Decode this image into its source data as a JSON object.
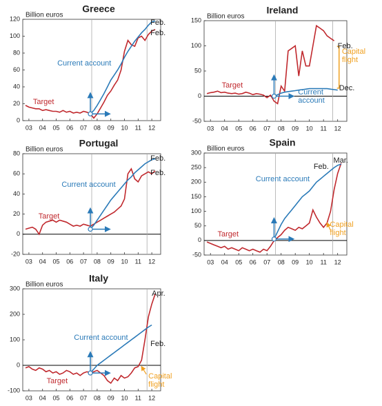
{
  "chart_data": [
    {
      "type": "line",
      "title": "Greece",
      "y_label": "Billion euros",
      "x": [
        2.75,
        3,
        3.25,
        3.5,
        3.75,
        4,
        4.25,
        4.5,
        4.75,
        5,
        5.25,
        5.5,
        5.75,
        6,
        6.25,
        6.5,
        6.75,
        7,
        7.25,
        7.5,
        7.75,
        8,
        8.25,
        8.5,
        8.75,
        9,
        9.25,
        9.5,
        9.75,
        10,
        10.25,
        10.5,
        10.75,
        11,
        11.25,
        11.5,
        11.75,
        12,
        12.25
      ],
      "series": [
        {
          "name": "Target",
          "color": "#c0282d",
          "values": [
            18,
            16,
            15,
            14,
            14,
            12,
            13,
            12,
            11,
            11,
            10,
            12,
            10,
            11,
            9,
            10,
            9,
            11,
            10,
            8,
            3,
            8,
            15,
            22,
            30,
            35,
            42,
            48,
            60,
            82,
            95,
            90,
            88,
            98,
            100,
            95,
            102,
            106,
            108
          ]
        },
        {
          "name": "Current account",
          "color": "#2a7ab8",
          "values": [
            null,
            null,
            null,
            null,
            null,
            null,
            null,
            null,
            null,
            null,
            null,
            null,
            null,
            null,
            null,
            null,
            null,
            null,
            null,
            8,
            12,
            18,
            25,
            32,
            40,
            48,
            54,
            60,
            67,
            75,
            82,
            88,
            94,
            99,
            104,
            108,
            113,
            117,
            118
          ]
        }
      ],
      "xlim": [
        2.55,
        12.65
      ],
      "xticks": [
        {
          "value": 3,
          "label": "03"
        },
        {
          "value": 4,
          "label": "04"
        },
        {
          "value": 5,
          "label": "05"
        },
        {
          "value": 6,
          "label": "06"
        },
        {
          "value": 7,
          "label": "07"
        },
        {
          "value": 8,
          "label": "08"
        },
        {
          "value": 9,
          "label": "09"
        },
        {
          "value": 10,
          "label": "10"
        },
        {
          "value": 11,
          "label": "11"
        },
        {
          "value": 12,
          "label": "12"
        }
      ],
      "ylim": [
        0,
        120
      ],
      "yticks": [
        0,
        20,
        40,
        60,
        80,
        100,
        120
      ],
      "annotations": [
        {
          "text": "Current account",
          "color": "#2a7ab8"
        },
        {
          "text": "Target",
          "color": "#c0282d"
        },
        {
          "text": "Feb.",
          "color": "#222"
        },
        {
          "text": "Feb.",
          "color": "#222"
        }
      ]
    },
    {
      "type": "line",
      "title": "Ireland",
      "y_label": "Billion euros",
      "x": [
        2.75,
        3,
        3.25,
        3.5,
        3.75,
        4,
        4.25,
        4.5,
        4.75,
        5,
        5.25,
        5.5,
        5.75,
        6,
        6.25,
        6.5,
        6.75,
        7,
        7.25,
        7.5,
        7.75,
        8,
        8.25,
        8.5,
        8.75,
        9,
        9.25,
        9.5,
        9.75,
        10,
        10.25,
        10.5,
        10.75,
        11,
        11.25,
        11.5,
        11.75,
        12,
        12.25
      ],
      "series": [
        {
          "name": "Target",
          "color": "#c0282d",
          "values": [
            5,
            7,
            8,
            10,
            7,
            8,
            6,
            5,
            6,
            4,
            5,
            8,
            6,
            3,
            5,
            4,
            2,
            -3,
            2,
            -10,
            -15,
            20,
            10,
            90,
            95,
            100,
            40,
            90,
            60,
            60,
            100,
            140,
            135,
            130,
            120,
            115,
            110,
            null,
            null
          ]
        },
        {
          "name": "Current account",
          "color": "#2a7ab8",
          "values": [
            null,
            null,
            null,
            null,
            null,
            null,
            null,
            null,
            null,
            null,
            null,
            null,
            null,
            null,
            null,
            null,
            null,
            null,
            null,
            0,
            3,
            6,
            8,
            9,
            10,
            11,
            12,
            13,
            14,
            15,
            15,
            15,
            15,
            15,
            15,
            14,
            13,
            12,
            null
          ]
        }
      ],
      "xlim": [
        2.55,
        12.65
      ],
      "xticks": [
        {
          "value": 3,
          "label": "03"
        },
        {
          "value": 4,
          "label": "04"
        },
        {
          "value": 5,
          "label": "05"
        },
        {
          "value": 6,
          "label": "06"
        },
        {
          "value": 7,
          "label": "07"
        },
        {
          "value": 8,
          "label": "08"
        },
        {
          "value": 9,
          "label": "09"
        },
        {
          "value": 10,
          "label": "10"
        },
        {
          "value": 11,
          "label": "11"
        },
        {
          "value": 12,
          "label": "12"
        }
      ],
      "ylim": [
        -50,
        150
      ],
      "yticks": [
        -50,
        0,
        50,
        100,
        150
      ],
      "annotations": [
        {
          "text": "Feb.",
          "color": "#222"
        },
        {
          "text": "Capital flight",
          "color": "#f0a020"
        },
        {
          "text": "Dec.",
          "color": "#222"
        },
        {
          "text": "Current account",
          "color": "#2a7ab8"
        },
        {
          "text": "Target",
          "color": "#c0282d"
        }
      ]
    },
    {
      "type": "line",
      "title": "Portugal",
      "y_label": "Billion euros",
      "x": [
        2.75,
        3,
        3.25,
        3.5,
        3.75,
        4,
        4.25,
        4.5,
        4.75,
        5,
        5.25,
        5.5,
        5.75,
        6,
        6.25,
        6.5,
        6.75,
        7,
        7.25,
        7.5,
        7.75,
        8,
        8.25,
        8.5,
        8.75,
        9,
        9.25,
        9.5,
        9.75,
        10,
        10.25,
        10.5,
        10.75,
        11,
        11.25,
        11.5,
        11.75,
        12,
        12.25
      ],
      "series": [
        {
          "name": "Target",
          "color": "#c0282d",
          "values": [
            5,
            6,
            7,
            5,
            0,
            9,
            12,
            13,
            14,
            12,
            14,
            13,
            12,
            10,
            8,
            9,
            8,
            10,
            9,
            8,
            10,
            12,
            14,
            16,
            18,
            20,
            22,
            25,
            28,
            35,
            60,
            65,
            55,
            52,
            58,
            60,
            62,
            60,
            63
          ]
        },
        {
          "name": "Current account",
          "color": "#2a7ab8",
          "values": [
            null,
            null,
            null,
            null,
            null,
            null,
            null,
            null,
            null,
            null,
            null,
            null,
            null,
            null,
            null,
            null,
            null,
            null,
            null,
            5,
            9,
            14,
            19,
            24,
            29,
            34,
            38,
            42,
            46,
            50,
            54,
            57,
            61,
            64,
            67,
            70,
            72,
            74,
            75
          ]
        }
      ],
      "xlim": [
        2.55,
        12.65
      ],
      "xticks": [
        {
          "value": 3,
          "label": "03"
        },
        {
          "value": 4,
          "label": "04"
        },
        {
          "value": 5,
          "label": "05"
        },
        {
          "value": 6,
          "label": "06"
        },
        {
          "value": 7,
          "label": "07"
        },
        {
          "value": 8,
          "label": "08"
        },
        {
          "value": 9,
          "label": "09"
        },
        {
          "value": 10,
          "label": "10"
        },
        {
          "value": 11,
          "label": "11"
        },
        {
          "value": 12,
          "label": "12"
        }
      ],
      "ylim": [
        -20,
        80
      ],
      "yticks": [
        -20,
        0,
        20,
        40,
        60,
        80
      ],
      "annotations": [
        {
          "text": "Current account",
          "color": "#2a7ab8"
        },
        {
          "text": "Target",
          "color": "#c0282d"
        },
        {
          "text": "Feb.",
          "color": "#222"
        },
        {
          "text": "Feb.",
          "color": "#222"
        }
      ]
    },
    {
      "type": "line",
      "title": "Spain",
      "y_label": "Billion euros",
      "x": [
        2.75,
        3,
        3.25,
        3.5,
        3.75,
        4,
        4.25,
        4.5,
        4.75,
        5,
        5.25,
        5.5,
        5.75,
        6,
        6.25,
        6.5,
        6.75,
        7,
        7.25,
        7.5,
        7.75,
        8,
        8.25,
        8.5,
        8.75,
        9,
        9.25,
        9.5,
        9.75,
        10,
        10.25,
        10.5,
        10.75,
        11,
        11.25,
        11.5,
        11.75,
        12,
        12.25
      ],
      "series": [
        {
          "name": "Target",
          "color": "#c0282d",
          "values": [
            -5,
            -10,
            -15,
            -20,
            -25,
            -20,
            -30,
            -25,
            -30,
            -35,
            -25,
            -30,
            -35,
            -30,
            -35,
            -40,
            -30,
            -35,
            -20,
            0,
            10,
            20,
            35,
            45,
            40,
            35,
            45,
            40,
            50,
            60,
            105,
            80,
            60,
            45,
            60,
            100,
            175,
            230,
            265
          ]
        },
        {
          "name": "Current account",
          "color": "#2a7ab8",
          "values": [
            null,
            null,
            null,
            null,
            null,
            null,
            null,
            null,
            null,
            null,
            null,
            null,
            null,
            null,
            null,
            null,
            null,
            null,
            null,
            5,
            30,
            55,
            75,
            90,
            105,
            120,
            135,
            150,
            160,
            170,
            185,
            200,
            210,
            220,
            230,
            240,
            250,
            258,
            262
          ]
        }
      ],
      "xlim": [
        2.55,
        12.65
      ],
      "xticks": [
        {
          "value": 3,
          "label": "03"
        },
        {
          "value": 4,
          "label": "04"
        },
        {
          "value": 5,
          "label": "05"
        },
        {
          "value": 6,
          "label": "06"
        },
        {
          "value": 7,
          "label": "07"
        },
        {
          "value": 8,
          "label": "08"
        },
        {
          "value": 9,
          "label": "09"
        },
        {
          "value": 10,
          "label": "10"
        },
        {
          "value": 11,
          "label": "11"
        },
        {
          "value": 12,
          "label": "12"
        }
      ],
      "ylim": [
        -50,
        300
      ],
      "yticks": [
        -50,
        0,
        50,
        100,
        150,
        200,
        250,
        300
      ],
      "annotations": [
        {
          "text": "Current account",
          "color": "#2a7ab8"
        },
        {
          "text": "Target",
          "color": "#c0282d"
        },
        {
          "text": "Feb.",
          "color": "#222"
        },
        {
          "text": "Mar.",
          "color": "#222"
        },
        {
          "text": "Capital flight",
          "color": "#f0a020"
        }
      ]
    },
    {
      "type": "line",
      "title": "Italy",
      "y_label": "Billion euros",
      "x": [
        2.75,
        3,
        3.25,
        3.5,
        3.75,
        4,
        4.25,
        4.5,
        4.75,
        5,
        5.25,
        5.5,
        5.75,
        6,
        6.25,
        6.5,
        6.75,
        7,
        7.25,
        7.5,
        7.75,
        8,
        8.25,
        8.5,
        8.75,
        9,
        9.25,
        9.5,
        9.75,
        10,
        10.25,
        10.5,
        10.75,
        11,
        11.25,
        11.5,
        11.75,
        12,
        12.25
      ],
      "series": [
        {
          "name": "Target",
          "color": "#c0282d",
          "values": [
            -10,
            -5,
            -15,
            -20,
            -10,
            -15,
            -25,
            -20,
            -30,
            -25,
            -35,
            -30,
            -20,
            -25,
            -35,
            -30,
            -40,
            -30,
            -25,
            -30,
            -25,
            -20,
            -30,
            -40,
            -60,
            -70,
            -50,
            -60,
            -40,
            -50,
            -45,
            -30,
            -10,
            -5,
            20,
            100,
            190,
            240,
            280
          ]
        },
        {
          "name": "Current account",
          "color": "#2a7ab8",
          "values": [
            null,
            null,
            null,
            null,
            null,
            null,
            null,
            null,
            null,
            null,
            null,
            null,
            null,
            null,
            null,
            null,
            null,
            null,
            null,
            -30,
            -15,
            0,
            10,
            20,
            30,
            40,
            50,
            60,
            70,
            80,
            90,
            100,
            110,
            120,
            130,
            140,
            150,
            158,
            null
          ]
        }
      ],
      "xlim": [
        2.55,
        12.65
      ],
      "xticks": [
        {
          "value": 3,
          "label": "03"
        },
        {
          "value": 4,
          "label": "04"
        },
        {
          "value": 5,
          "label": "05"
        },
        {
          "value": 6,
          "label": "06"
        },
        {
          "value": 7,
          "label": "07"
        },
        {
          "value": 8,
          "label": "08"
        },
        {
          "value": 9,
          "label": "09"
        },
        {
          "value": 10,
          "label": "10"
        },
        {
          "value": 11,
          "label": "11"
        },
        {
          "value": 12,
          "label": "12"
        }
      ],
      "ylim": [
        -100,
        300
      ],
      "yticks": [
        -100,
        0,
        100,
        200,
        300
      ],
      "annotations": [
        {
          "text": "Current account",
          "color": "#2a7ab8"
        },
        {
          "text": "Target",
          "color": "#c0282d"
        },
        {
          "text": "Apr.",
          "color": "#222"
        },
        {
          "text": "Feb.",
          "color": "#222"
        },
        {
          "text": "Capital flight",
          "color": "#f0a020"
        }
      ]
    }
  ]
}
